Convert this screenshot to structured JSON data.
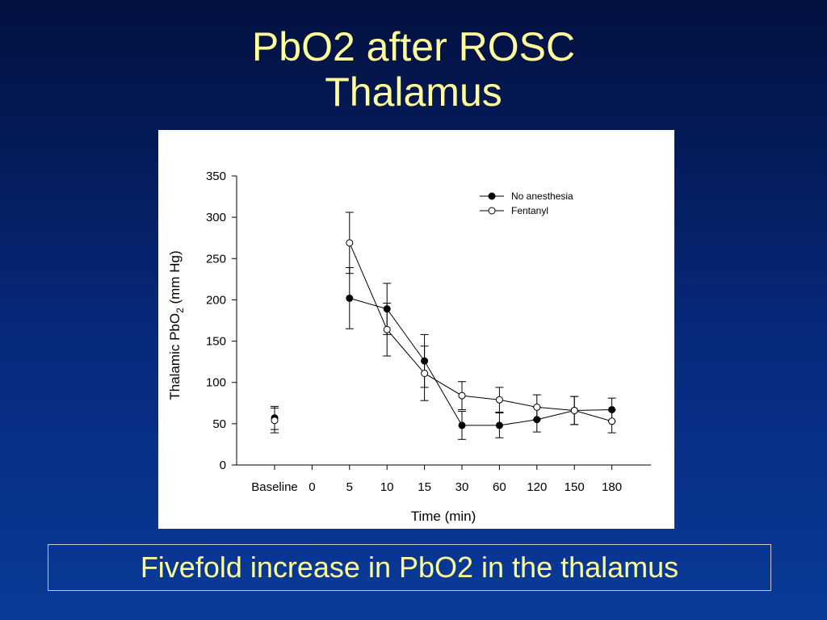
{
  "slide": {
    "title_line1": "PbO2 after ROSC",
    "title_line2": "Thalamus",
    "caption": "Fivefold increase in PbO2 in the thalamus"
  },
  "colors": {
    "background_top": "#03103f",
    "background_bottom": "#0a3a99",
    "title_text": "#ffff99",
    "panel": "#ffffff",
    "series_line": "#000000"
  },
  "chart_data": {
    "type": "line",
    "ylabel": "Thalamic PbO2 (mm Hg)",
    "ylabel_main": "Thalamic PbO",
    "ylabel_sub": "2",
    "ylabel_unit": " (mm Hg)",
    "xlabel": "Time (min)",
    "ylim": [
      0,
      350
    ],
    "yticks": [
      "0",
      "50",
      "100",
      "150",
      "200",
      "250",
      "300",
      "350"
    ],
    "categories": [
      "Baseline",
      "0",
      "5",
      "10",
      "15",
      "30",
      "60",
      "120",
      "150",
      "180"
    ],
    "grid": false,
    "legend_position": "top-right",
    "series": [
      {
        "name": "No anesthesia",
        "marker": "filled-circle",
        "connected_from": "5",
        "values": [
          57,
          null,
          202,
          189,
          126,
          48,
          48,
          55,
          66,
          67
        ],
        "error": [
          14,
          null,
          37,
          31,
          32,
          17,
          15,
          15,
          17,
          14
        ]
      },
      {
        "name": "Fentanyl",
        "marker": "open-circle",
        "connected_from": "5",
        "values": [
          54,
          null,
          269,
          164,
          111,
          84,
          79,
          70,
          66,
          53
        ],
        "error": [
          15,
          null,
          37,
          32,
          33,
          17,
          15,
          15,
          17,
          14
        ]
      }
    ]
  }
}
